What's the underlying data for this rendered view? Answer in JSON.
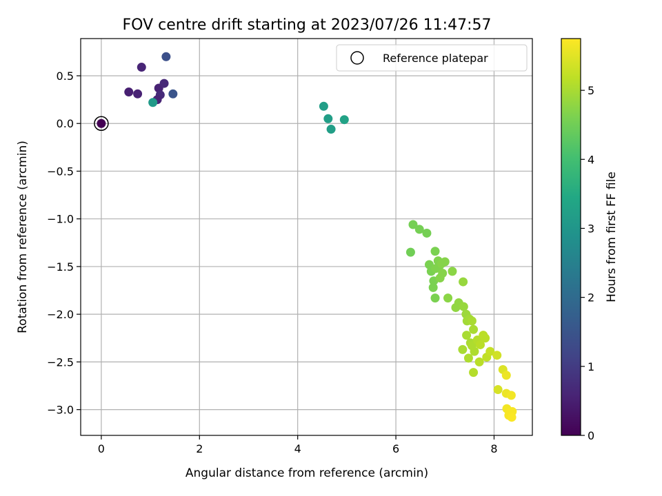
{
  "chart_data": {
    "type": "scatter",
    "title": "FOV centre drift starting at 2023/07/26 11:47:57",
    "xlabel": "Angular distance from reference (arcmin)",
    "ylabel": "Rotation from reference (arcmin)",
    "xlim": [
      -0.42,
      8.78
    ],
    "ylim": [
      -3.27,
      0.89
    ],
    "xticks": [
      0,
      2,
      4,
      6,
      8
    ],
    "xtick_labels": [
      "0",
      "2",
      "4",
      "6",
      "8"
    ],
    "yticks": [
      0.5,
      0.0,
      -0.5,
      -1.0,
      -1.5,
      -2.0,
      -2.5,
      -3.0
    ],
    "ytick_labels": [
      "0.5",
      "0.0",
      "−0.5",
      "−1.0",
      "−1.5",
      "−2.0",
      "−2.5",
      "−3.0"
    ],
    "grid": true,
    "legend": {
      "position": "top-right",
      "entries": [
        {
          "label": "Reference platepar",
          "marker": "open-circle"
        }
      ]
    },
    "reference_point": {
      "x": 0.0,
      "y": 0.0
    },
    "colorbar": {
      "label": "Hours from first FF file",
      "colormap": "viridis",
      "range": [
        0,
        5.75
      ],
      "ticks": [
        0,
        1,
        2,
        3,
        4,
        5
      ],
      "tick_labels": [
        "0",
        "1",
        "2",
        "3",
        "4",
        "5"
      ]
    },
    "series": [
      {
        "points": [
          [
            0.0,
            0.0,
            0.0
          ],
          [
            0.56,
            0.33,
            0.5
          ],
          [
            0.74,
            0.31,
            0.55
          ],
          [
            0.82,
            0.59,
            0.6
          ],
          [
            1.17,
            0.37,
            0.55
          ],
          [
            1.28,
            0.42,
            0.65
          ],
          [
            1.2,
            0.3,
            0.7
          ],
          [
            1.14,
            0.25,
            0.6
          ],
          [
            1.32,
            0.7,
            1.4
          ],
          [
            1.46,
            0.31,
            1.5
          ],
          [
            1.05,
            0.22,
            3.1
          ],
          [
            4.53,
            0.18,
            3.2
          ],
          [
            4.62,
            0.05,
            3.2
          ],
          [
            4.68,
            -0.06,
            3.2
          ],
          [
            4.95,
            0.04,
            3.3
          ],
          [
            6.3,
            -1.35,
            4.5
          ],
          [
            6.35,
            -1.06,
            4.55
          ],
          [
            6.48,
            -1.11,
            4.55
          ],
          [
            6.63,
            -1.15,
            4.55
          ],
          [
            6.68,
            -1.48,
            4.6
          ],
          [
            6.72,
            -1.55,
            4.6
          ],
          [
            6.77,
            -1.65,
            4.6
          ],
          [
            6.8,
            -1.34,
            4.6
          ],
          [
            6.81,
            -1.52,
            4.65
          ],
          [
            6.76,
            -1.72,
            4.6
          ],
          [
            6.8,
            -1.83,
            4.6
          ],
          [
            6.86,
            -1.44,
            4.65
          ],
          [
            6.88,
            -1.5,
            4.65
          ],
          [
            6.9,
            -1.62,
            4.7
          ],
          [
            6.93,
            -1.47,
            4.7
          ],
          [
            6.95,
            -1.57,
            4.7
          ],
          [
            7.0,
            -1.45,
            4.7
          ],
          [
            7.06,
            -1.83,
            4.75
          ],
          [
            7.15,
            -1.55,
            4.75
          ],
          [
            7.22,
            -1.93,
            4.8
          ],
          [
            7.28,
            -1.88,
            4.8
          ],
          [
            7.37,
            -1.66,
            4.85
          ],
          [
            7.38,
            -1.92,
            4.85
          ],
          [
            7.43,
            -2.0,
            4.9
          ],
          [
            7.45,
            -2.07,
            4.95
          ],
          [
            7.5,
            -2.05,
            4.95
          ],
          [
            7.55,
            -2.07,
            5.0
          ],
          [
            7.44,
            -2.22,
            5.0
          ],
          [
            7.52,
            -2.3,
            5.0
          ],
          [
            7.58,
            -2.16,
            5.0
          ],
          [
            7.36,
            -2.37,
            5.0
          ],
          [
            7.48,
            -2.46,
            5.05
          ],
          [
            7.55,
            -2.33,
            5.05
          ],
          [
            7.6,
            -2.39,
            5.05
          ],
          [
            7.58,
            -2.61,
            5.1
          ],
          [
            7.66,
            -2.27,
            5.1
          ],
          [
            7.7,
            -2.5,
            5.15
          ],
          [
            7.72,
            -2.32,
            5.15
          ],
          [
            7.78,
            -2.22,
            5.15
          ],
          [
            7.82,
            -2.25,
            5.15
          ],
          [
            7.85,
            -2.45,
            5.2
          ],
          [
            7.92,
            -2.39,
            5.25
          ],
          [
            8.06,
            -2.43,
            5.35
          ],
          [
            8.08,
            -2.79,
            5.4
          ],
          [
            8.18,
            -2.58,
            5.45
          ],
          [
            8.25,
            -2.64,
            5.6
          ],
          [
            8.25,
            -2.83,
            5.6
          ],
          [
            8.35,
            -2.85,
            5.65
          ],
          [
            8.26,
            -2.99,
            5.65
          ],
          [
            8.32,
            -3.03,
            5.7
          ],
          [
            8.37,
            -3.02,
            5.7
          ],
          [
            8.3,
            -3.06,
            5.7
          ],
          [
            8.36,
            -3.08,
            5.72
          ]
        ]
      }
    ]
  }
}
